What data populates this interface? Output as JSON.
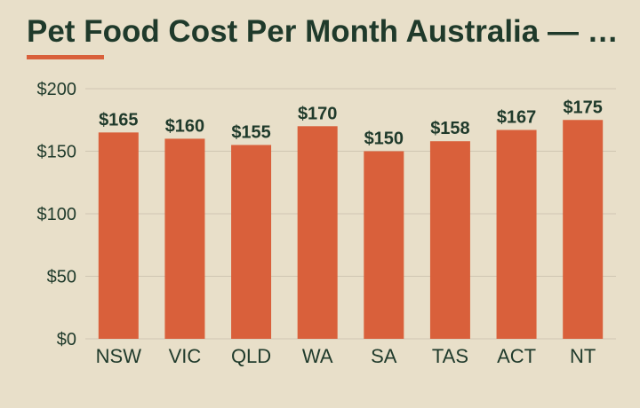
{
  "colors": {
    "background": "#e8dfc9",
    "bar": "#d9603b",
    "title_text": "#1f3a2b",
    "label_text": "#1f3a2b",
    "grid": "#cfc6b2"
  },
  "chart_data": {
    "type": "bar",
    "title": "Pet Food Cost Per Month Australia — …",
    "xlabel": "",
    "ylabel": "",
    "categories": [
      "NSW",
      "VIC",
      "QLD",
      "WA",
      "SA",
      "TAS",
      "ACT",
      "NT"
    ],
    "values": [
      165,
      160,
      155,
      170,
      150,
      158,
      167,
      175
    ],
    "data_labels": [
      "$165",
      "$160",
      "$155",
      "$170",
      "$150",
      "$158",
      "$167",
      "$175"
    ],
    "ylim": [
      0,
      200
    ],
    "yticks": [
      0,
      50,
      100,
      150,
      200
    ],
    "ytick_labels": [
      "$0",
      "$50",
      "$100",
      "$150",
      "$200"
    ],
    "grid": true,
    "legend": "none"
  }
}
